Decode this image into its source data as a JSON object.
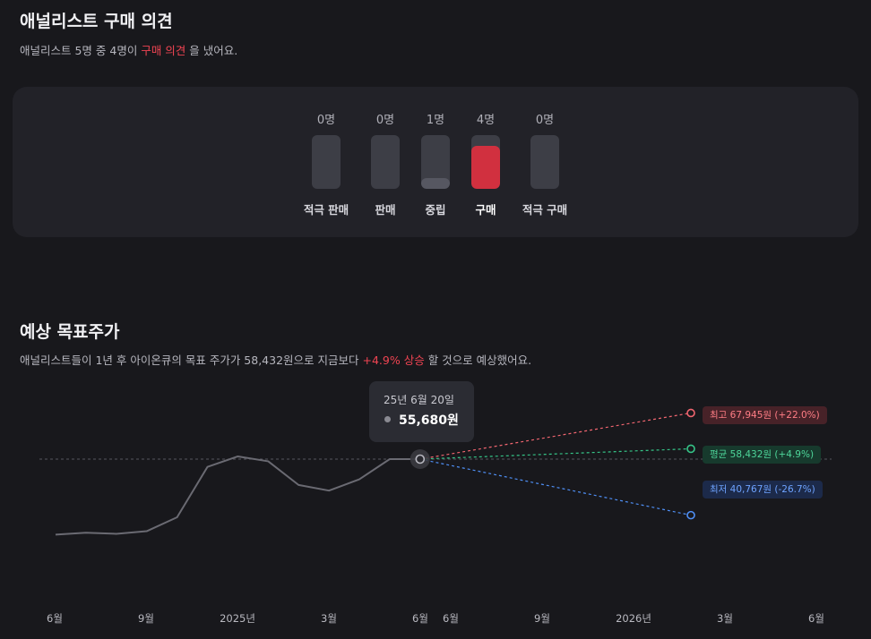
{
  "opinion": {
    "title": "애널리스트 구매 의견",
    "subtitle_prefix": "애널리스트 5명 중 4명이",
    "subtitle_highlight": "구매 의견",
    "subtitle_suffix": "을 냈어요.",
    "votes": [
      {
        "label": "적극 판매",
        "count": "0명",
        "value": 0
      },
      {
        "label": "판매",
        "count": "0명",
        "value": 0
      },
      {
        "label": "중립",
        "count": "1명",
        "value": 1
      },
      {
        "label": "구매",
        "count": "4명",
        "value": 4
      },
      {
        "label": "적극 구매",
        "count": "0명",
        "value": 0
      }
    ],
    "total": 5,
    "active_index": 3,
    "active_color": "#d1303f"
  },
  "target": {
    "title": "예상 목표주가",
    "subtitle_prefix": "애널리스트들이 1년 후 아이온큐의 목표 주가가 58,432원으로 지금보다",
    "subtitle_highlight": "+4.9% 상승",
    "subtitle_suffix": "할 것으로 예상했어요.",
    "tooltip": {
      "date": "25년 6월 20일",
      "value": "55,680원"
    },
    "tags": {
      "max": "최고 67,945원 (+22.0%)",
      "avg": "평균 58,432원 (+4.9%)",
      "min": "최저 40,767원 (-26.7%)"
    }
  },
  "chart_data": {
    "type": "line",
    "x_ticks": [
      "6월",
      "9월",
      "2025년",
      "3월",
      "6월",
      "6월",
      "9월",
      "2026년",
      "3월",
      "6월"
    ],
    "series": [
      {
        "values": [
          35600,
          36100,
          35800,
          36500,
          40200,
          53600,
          56400,
          55100,
          48800,
          47300,
          50300,
          55680,
          55680
        ]
      }
    ],
    "current": 55680,
    "projections": [
      {
        "label": "최고",
        "value": 67945,
        "color": "#f0656f"
      },
      {
        "label": "평균",
        "value": 58432,
        "color": "#35c487"
      },
      {
        "label": "최저",
        "value": 40767,
        "color": "#4f8ff5"
      }
    ],
    "colors": {
      "history": "#6a6a72",
      "baseline": "#56565e"
    },
    "grid": false
  }
}
